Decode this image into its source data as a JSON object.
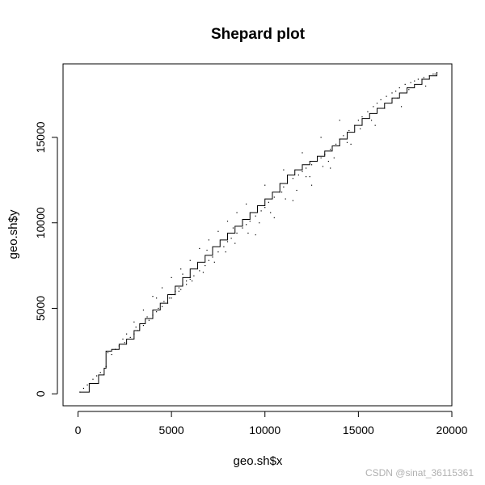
{
  "chart_data": {
    "type": "scatter",
    "title": "Shepard plot",
    "xlabel": "geo.sh$x",
    "ylabel": "geo.sh$y",
    "xlim": [
      -800,
      20000
    ],
    "ylim": [
      -700,
      19300
    ],
    "xticks": [
      0,
      5000,
      10000,
      15000,
      20000
    ],
    "yticks": [
      0,
      5000,
      10000,
      15000
    ],
    "grid": false,
    "legend": "none",
    "series": [
      {
        "kind": "points",
        "x": [
          100,
          300,
          500,
          800,
          1000,
          1200,
          1500,
          1800,
          2000,
          2200,
          2500,
          2800,
          3000,
          3200,
          3500,
          3800,
          4000,
          4200,
          4500,
          4800,
          5000,
          5200,
          5500,
          5800,
          6000,
          6200,
          6500,
          6800,
          7000,
          7200,
          7500,
          7800,
          8000,
          8200,
          8500,
          8800,
          9000,
          9200,
          9500,
          9800,
          10000,
          10200,
          10500,
          10800,
          11000,
          11200,
          11500,
          11800,
          12000,
          12200,
          12500,
          12800,
          13000,
          13200,
          13500,
          13800,
          14000,
          14200,
          14500,
          14800,
          15000,
          15200,
          15500,
          15800,
          16000,
          16200,
          16500,
          16800,
          17000,
          17200,
          17500,
          17800,
          18000,
          18200,
          18500,
          18800,
          19000,
          19200,
          1600,
          2400,
          3100,
          3700,
          4300,
          4900,
          5400,
          6100,
          6700,
          7300,
          7900,
          8400,
          9100,
          9700,
          10300,
          11100,
          11700,
          12400,
          13100,
          13700,
          14400,
          15100,
          15700,
          16400,
          17100,
          17700,
          18400,
          19100,
          3000,
          3500,
          4000,
          4500,
          5000,
          5500,
          6000,
          6500,
          7000,
          7500,
          8000,
          8500,
          9000,
          10000,
          11000,
          12000,
          13000,
          14000,
          2600,
          4200,
          5600,
          6900,
          8300,
          9600,
          10900,
          12200,
          13400,
          14600,
          15900,
          17300,
          18600,
          4600,
          4800,
          5000,
          5200,
          5400,
          5600,
          5800,
          6000,
          11500,
          12500,
          13500,
          10500,
          9500
        ],
        "y": [
          100,
          320,
          520,
          850,
          1050,
          1250,
          1600,
          2300,
          2600,
          2800,
          3000,
          3300,
          3500,
          3700,
          4000,
          4300,
          4600,
          4800,
          5100,
          5300,
          5600,
          5800,
          6100,
          6400,
          6700,
          6900,
          7200,
          7500,
          7800,
          8000,
          8300,
          8600,
          8900,
          9100,
          9400,
          9700,
          9900,
          10100,
          10400,
          10700,
          10900,
          11200,
          11500,
          11800,
          12100,
          12300,
          12600,
          12800,
          13000,
          13200,
          13400,
          13600,
          13800,
          14000,
          14300,
          14600,
          14900,
          15100,
          15400,
          15700,
          16000,
          16200,
          16500,
          16800,
          17000,
          17200,
          17400,
          17600,
          17700,
          17900,
          18100,
          18200,
          18300,
          18400,
          18500,
          18600,
          18700,
          18800,
          2400,
          3200,
          3900,
          4500,
          5000,
          5600,
          6000,
          6600,
          7100,
          7700,
          8300,
          8800,
          9400,
          10000,
          10600,
          11400,
          11900,
          12700,
          13300,
          13800,
          14700,
          15500,
          16000,
          16700,
          17300,
          17800,
          18400,
          18700,
          4200,
          4900,
          5700,
          6200,
          6800,
          7300,
          7800,
          8500,
          9000,
          9500,
          10100,
          10600,
          11100,
          12200,
          13100,
          14100,
          15000,
          16000,
          3500,
          5600,
          7000,
          8400,
          9700,
          10700,
          11800,
          12700,
          13600,
          14600,
          15700,
          16800,
          18000,
          5400,
          5600,
          5800,
          6000,
          6200,
          6400,
          6600,
          6800,
          11300,
          12200,
          13200,
          10300,
          9300
        ]
      },
      {
        "kind": "step-line",
        "x": [
          100,
          600,
          1100,
          1400,
          1500,
          1800,
          2200,
          2600,
          3000,
          3300,
          3600,
          4000,
          4400,
          4800,
          5200,
          5600,
          6000,
          6400,
          6800,
          7200,
          7600,
          8000,
          8400,
          8800,
          9200,
          9600,
          10000,
          10400,
          10800,
          11200,
          11600,
          12000,
          12400,
          12800,
          13200,
          13600,
          14000,
          14400,
          14800,
          15200,
          15600,
          16000,
          16400,
          16800,
          17200,
          17600,
          18000,
          18400,
          18800,
          19200
        ],
        "y": [
          100,
          600,
          1100,
          1500,
          2500,
          2600,
          2900,
          3200,
          3700,
          4100,
          4400,
          4900,
          5300,
          5800,
          6300,
          6800,
          7300,
          7700,
          8100,
          8600,
          9000,
          9400,
          9800,
          10200,
          10600,
          11000,
          11400,
          11800,
          12300,
          12800,
          13100,
          13400,
          13600,
          13900,
          14200,
          14500,
          14900,
          15300,
          15700,
          16100,
          16400,
          16700,
          17000,
          17300,
          17600,
          17900,
          18100,
          18400,
          18600,
          18800
        ]
      }
    ]
  },
  "watermark": "CSDN @sinat_36115361"
}
